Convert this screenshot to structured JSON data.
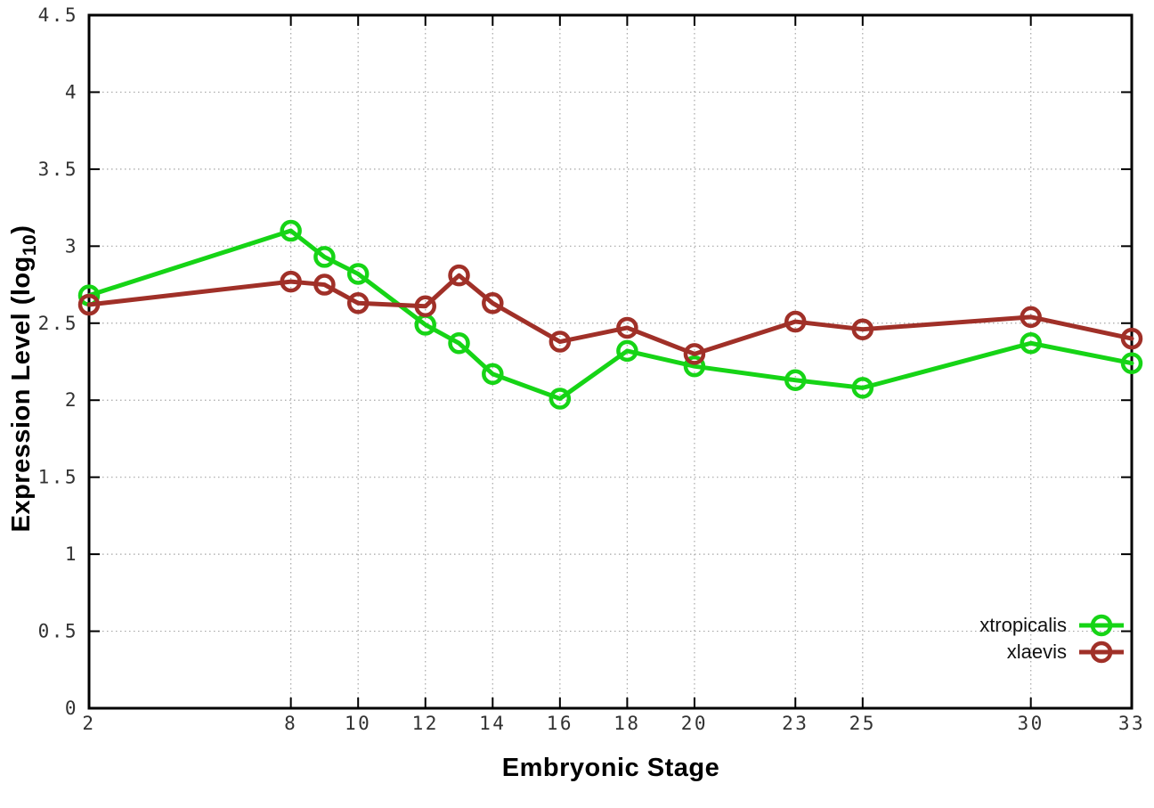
{
  "figure": {
    "background": "#ffffff",
    "axis_color": "#000000",
    "grid_color": "#a6a6a6",
    "tick_label_color": "#323232"
  },
  "chart_data": {
    "type": "line",
    "title": "",
    "xlabel": "Embryonic Stage",
    "ylabel_main": "Expression Level (log",
    "ylabel_sub": "10",
    "ylabel_close": ")",
    "x": [
      2,
      8,
      9,
      10,
      12,
      13,
      14,
      16,
      18,
      20,
      23,
      25,
      30,
      33
    ],
    "series": [
      {
        "name": "xtropicalis",
        "color": "#16d416",
        "values": [
          2.68,
          3.1,
          2.93,
          2.82,
          2.49,
          2.37,
          2.17,
          2.01,
          2.32,
          2.22,
          2.13,
          2.08,
          2.37,
          2.24
        ]
      },
      {
        "name": "xlaevis",
        "color": "#a03028",
        "values": [
          2.62,
          2.77,
          2.75,
          2.63,
          2.61,
          2.81,
          2.63,
          2.38,
          2.47,
          2.3,
          2.51,
          2.46,
          2.54,
          2.4
        ]
      }
    ],
    "xlim": [
      2,
      33
    ],
    "ylim": [
      0,
      4.5
    ],
    "xticks": {
      "values": [
        2,
        8,
        10,
        12,
        14,
        16,
        18,
        20,
        23,
        25,
        30,
        33
      ],
      "labels": [
        "2",
        "8",
        "10",
        "12",
        "14",
        "16",
        "18",
        "20",
        "23",
        "25",
        "30",
        "33"
      ]
    },
    "yticks": {
      "values": [
        0,
        0.5,
        1,
        1.5,
        2,
        2.5,
        3,
        3.5,
        4,
        4.5
      ],
      "labels": [
        "0",
        "0.5",
        "1",
        "1.5",
        "2",
        "2.5",
        "3",
        "3.5",
        "4",
        "4.5"
      ]
    },
    "grid": true,
    "legend_position": "inside-bottom-right",
    "marker": "open-circle"
  }
}
